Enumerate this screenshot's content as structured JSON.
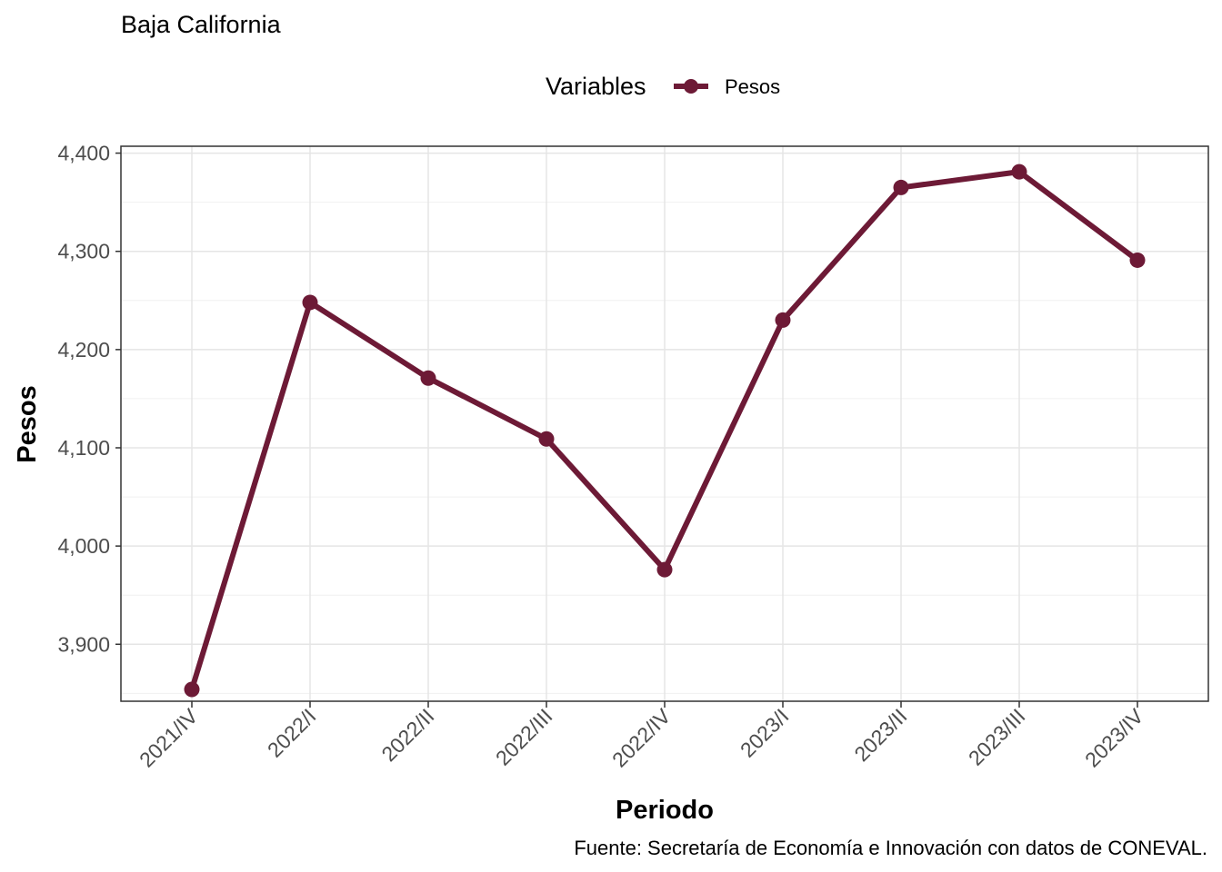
{
  "chart_data": {
    "type": "line",
    "title": "Baja California",
    "xlabel": "Periodo",
    "ylabel": "Pesos",
    "caption": "Fuente: Secretaría de Economía e Innovación con datos de CONEVAL.",
    "legend": {
      "title": "Variables",
      "position": "top"
    },
    "categories": [
      "2021/IV",
      "2022/I",
      "2022/II",
      "2022/III",
      "2022/IV",
      "2023/I",
      "2023/II",
      "2023/III",
      "2023/IV"
    ],
    "series": [
      {
        "name": "Pesos",
        "values": [
          3854,
          4248,
          4171,
          4109,
          3976,
          4230,
          4365,
          4381,
          4291
        ],
        "color": "#6d1a36"
      }
    ],
    "yticks": [
      3900,
      4000,
      4100,
      4200,
      4300,
      4400
    ],
    "ytick_labels": [
      "3,900",
      "4,000",
      "4,100",
      "4,200",
      "4,300",
      "4,400"
    ],
    "ylim": [
      3842,
      4407
    ],
    "grid": true
  }
}
